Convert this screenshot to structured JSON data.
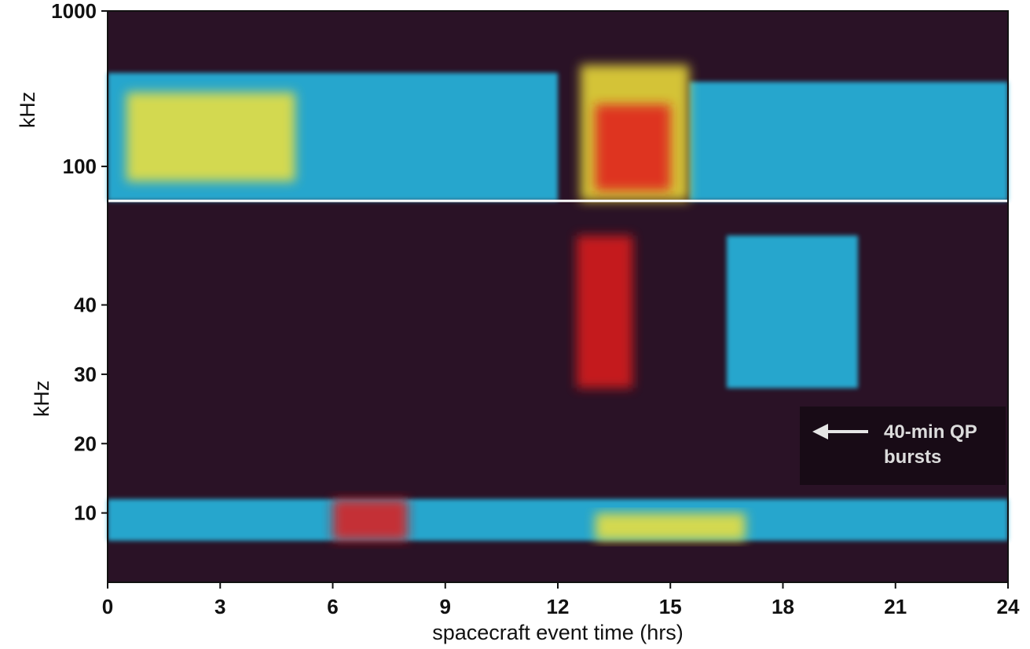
{
  "chart_data": {
    "type": "heatmap",
    "title": "",
    "xlabel": "spacecraft event time (hrs)",
    "xlim": [
      0,
      24
    ],
    "xticks": [
      0,
      3,
      6,
      9,
      12,
      15,
      18,
      21,
      24
    ],
    "xtick_labels": [
      "0",
      "3",
      "6",
      "9",
      "12",
      "15",
      "18",
      "21",
      "24"
    ],
    "colors": {
      "background": "#2a1226",
      "low": "#3a7fd0",
      "mid": "#27b7e0",
      "high": "#f2e23a",
      "peak": "#e01e1e"
    },
    "panels": [
      {
        "id": "upper",
        "ylabel": "kHz",
        "yscale": "log",
        "ylim": [
          60,
          1000
        ],
        "yticks": [
          100,
          1000
        ],
        "ytick_labels": [
          "100",
          "1000"
        ],
        "intensity_regions": [
          {
            "t": [
              0,
              12
            ],
            "f": [
              60,
              400
            ],
            "level": "mid"
          },
          {
            "t": [
              0.5,
              5
            ],
            "f": [
              80,
              300
            ],
            "level": "high"
          },
          {
            "t": [
              12.6,
              15.5
            ],
            "f": [
              60,
              450
            ],
            "level": "high"
          },
          {
            "t": [
              13,
              15
            ],
            "f": [
              70,
              250
            ],
            "level": "peak"
          },
          {
            "t": [
              15.5,
              24
            ],
            "f": [
              60,
              350
            ],
            "level": "mid"
          }
        ]
      },
      {
        "id": "lower",
        "ylabel": "kHz",
        "yscale": "linear",
        "ylim": [
          0,
          55
        ],
        "yticks": [
          10,
          20,
          30,
          40
        ],
        "ytick_labels": [
          "10",
          "20",
          "30",
          "40"
        ],
        "intensity_regions": [
          {
            "t": [
              0,
              24
            ],
            "f": [
              6,
              12
            ],
            "level": "mid"
          },
          {
            "t": [
              6,
              8
            ],
            "f": [
              6,
              12
            ],
            "level": "peak"
          },
          {
            "t": [
              13,
              17
            ],
            "f": [
              6,
              10
            ],
            "level": "high"
          },
          {
            "t": [
              12.5,
              14
            ],
            "f": [
              28,
              50
            ],
            "level": "peak"
          },
          {
            "t": [
              16.5,
              20
            ],
            "f": [
              28,
              50
            ],
            "level": "mid"
          }
        ]
      }
    ],
    "annotations": [
      {
        "text_lines": [
          "40-min QP",
          "bursts"
        ],
        "arrow_direction": "left",
        "time_hrs": 20.5,
        "freq_khz": 20
      }
    ]
  }
}
